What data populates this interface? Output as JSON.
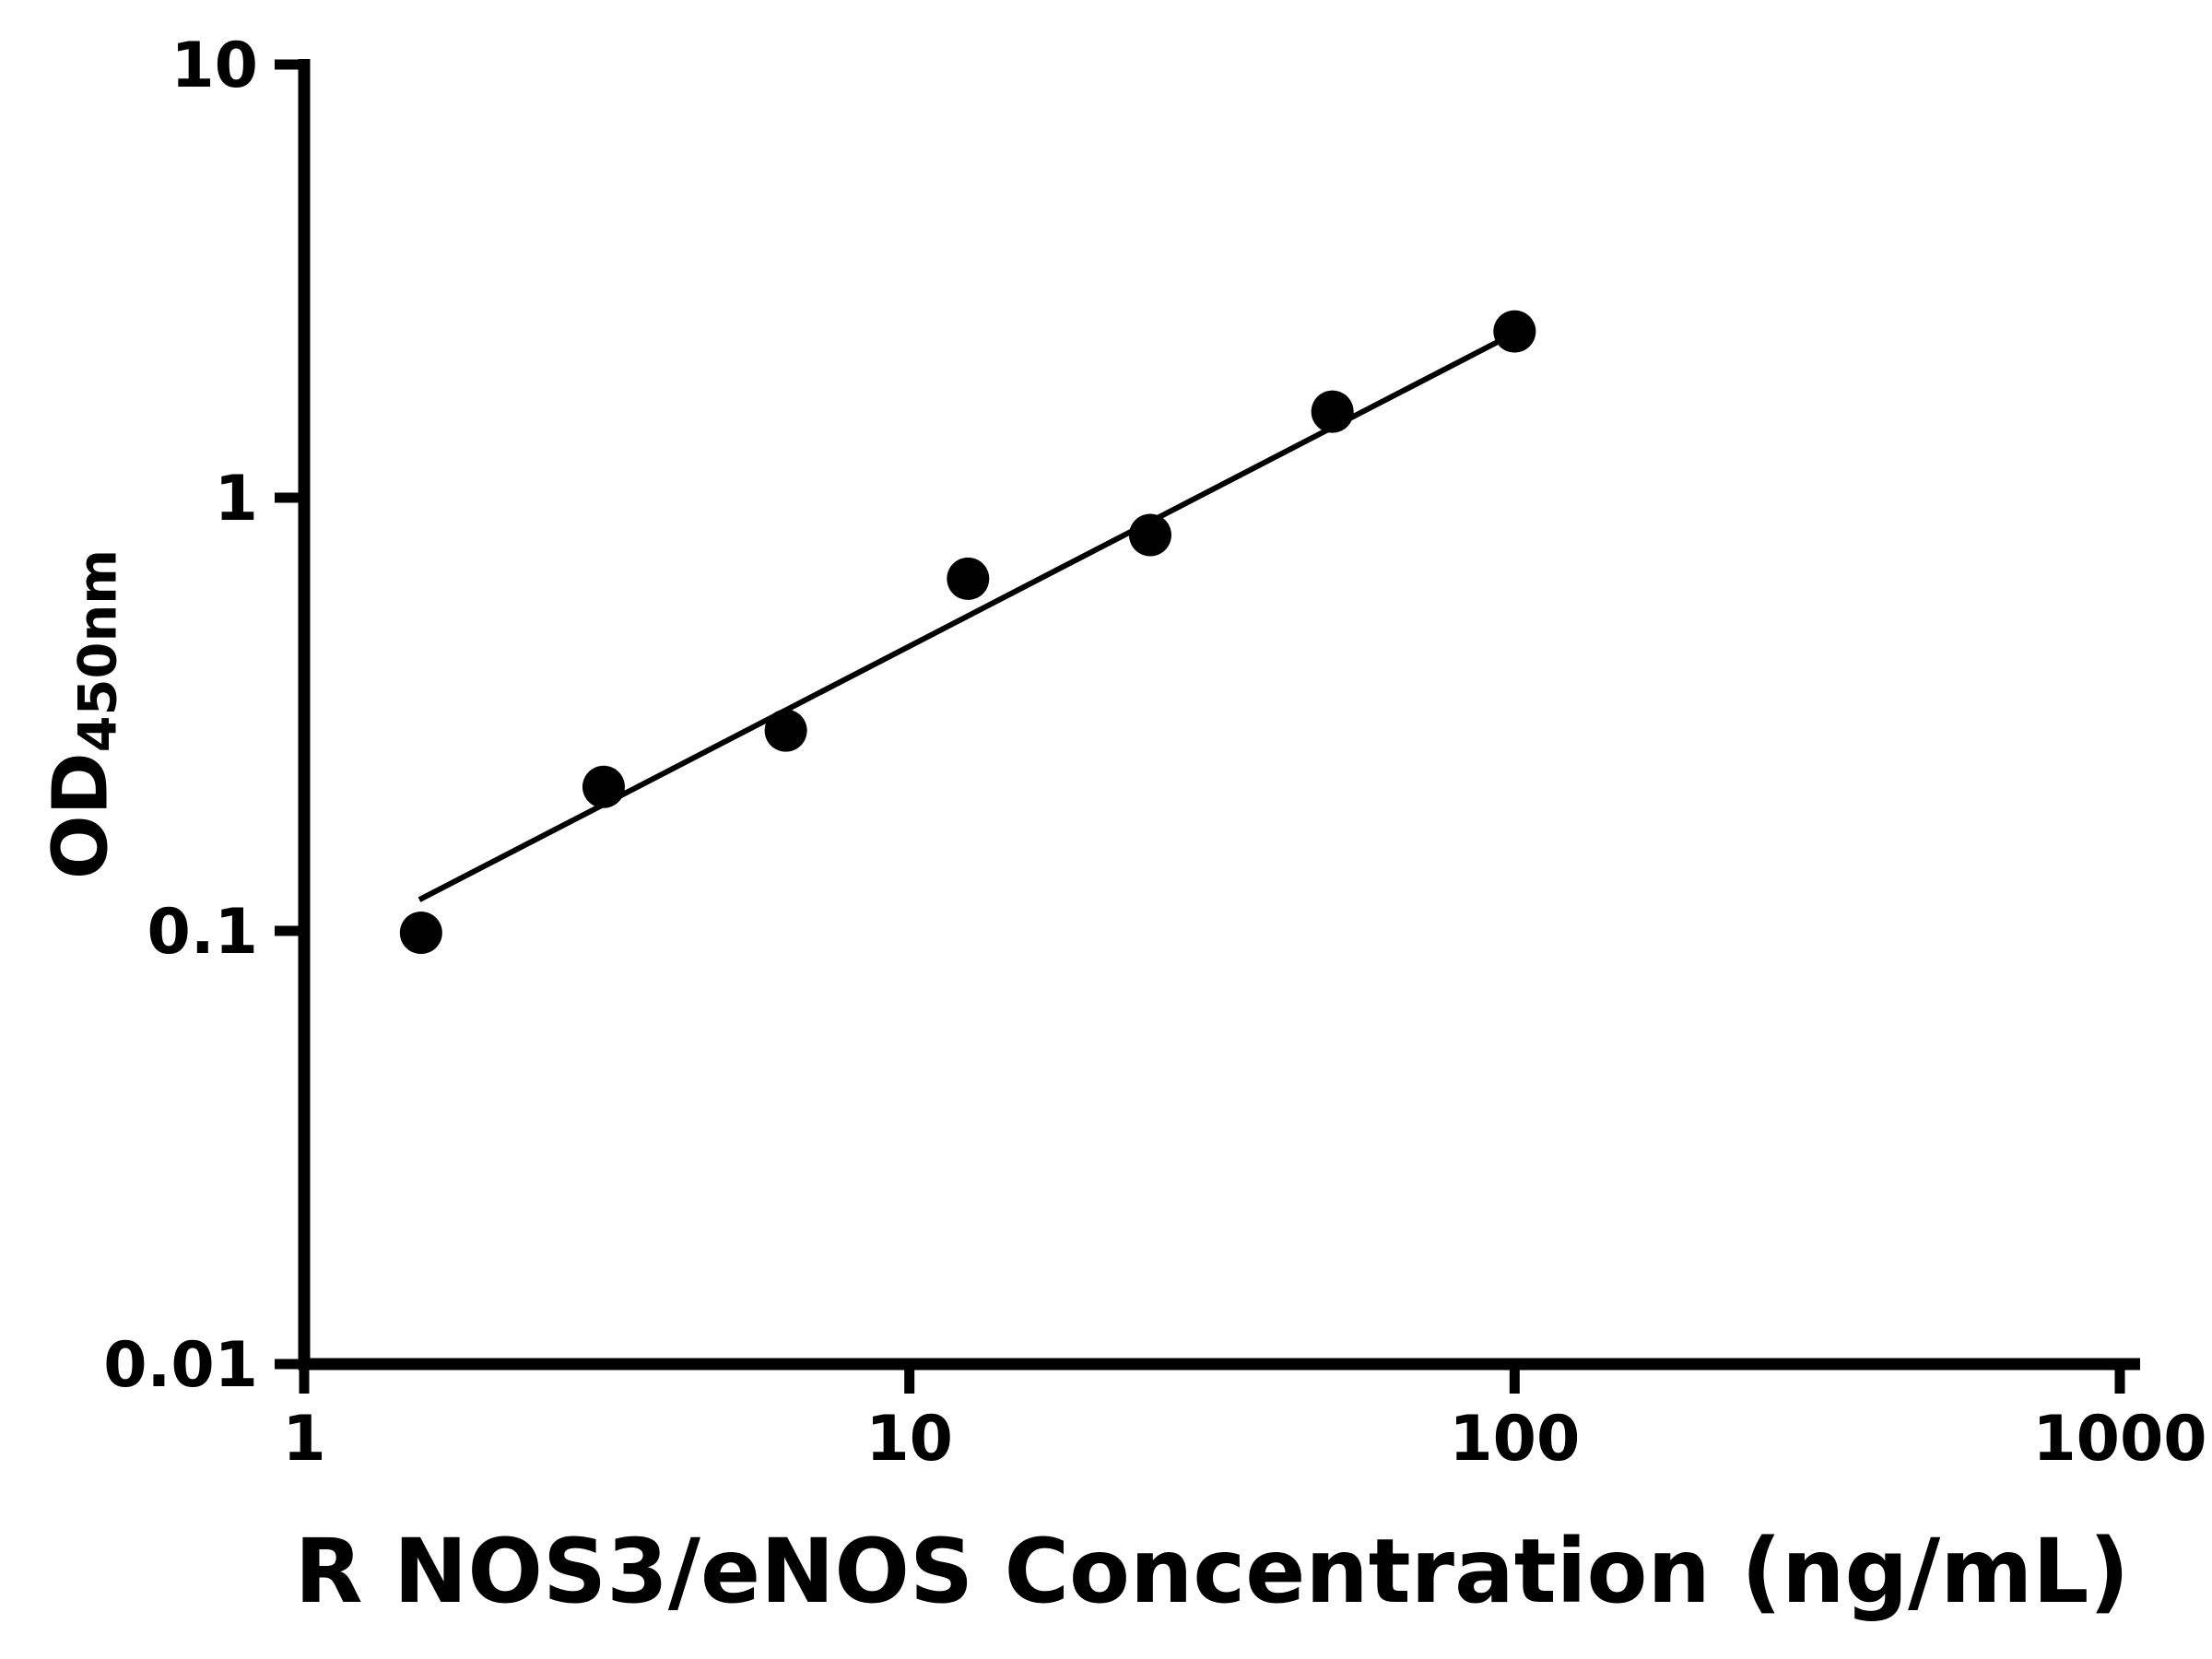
{
  "page": {
    "background": "#ffffff"
  },
  "chart_data": {
    "type": "scatter",
    "title": "",
    "xlabel": "R NOS3/eNOS Concentration (ng/mL)",
    "ylabel_main": "OD",
    "ylabel_sub": "450nm",
    "x_scale": "log",
    "y_scale": "log",
    "xlim": [
      1,
      1000
    ],
    "ylim": [
      0.01,
      10
    ],
    "grid": false,
    "legend": "none",
    "x_ticks": [
      {
        "value": 1,
        "label": "1"
      },
      {
        "value": 10,
        "label": "10"
      },
      {
        "value": 100,
        "label": "100"
      },
      {
        "value": 1000,
        "label": "1000"
      }
    ],
    "y_ticks": [
      {
        "value": 0.01,
        "label": "0.01"
      },
      {
        "value": 0.1,
        "label": "0.1"
      },
      {
        "value": 1,
        "label": "1"
      },
      {
        "value": 10,
        "label": "10"
      }
    ],
    "points": [
      {
        "x": 1.56,
        "y": 0.099
      },
      {
        "x": 3.125,
        "y": 0.215
      },
      {
        "x": 6.25,
        "y": 0.29
      },
      {
        "x": 12.5,
        "y": 0.65
      },
      {
        "x": 25,
        "y": 0.82
      },
      {
        "x": 50,
        "y": 1.58
      },
      {
        "x": 100,
        "y": 2.42
      }
    ],
    "trend_line": {
      "x1": 1.55,
      "y1": 0.118,
      "x2": 103,
      "y2": 2.45
    },
    "colors": {
      "axis": "#000000",
      "marker": "#000000",
      "line": "#000000",
      "text": "#000000"
    }
  }
}
